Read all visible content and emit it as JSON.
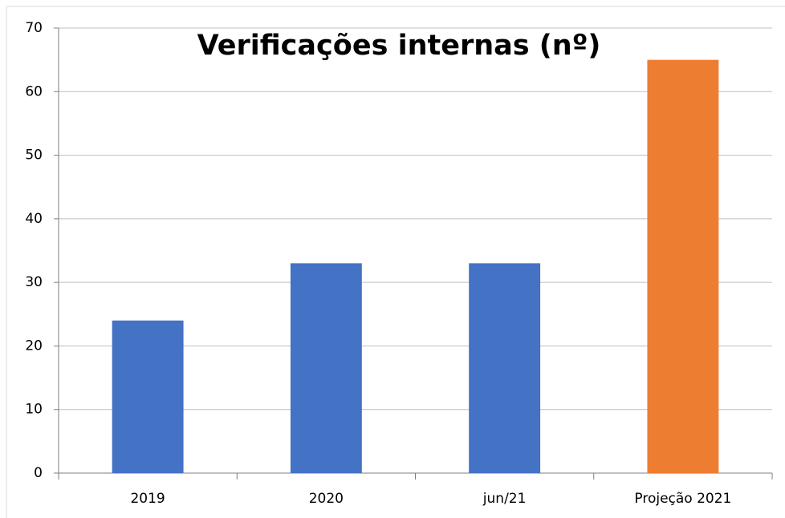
{
  "chart_data": {
    "type": "bar",
    "title": "Verificações internas (nº)",
    "categories": [
      "2019",
      "2020",
      "jun/21",
      "Projeção 2021"
    ],
    "values": [
      24,
      33,
      33,
      65
    ],
    "colors": [
      "#4472c4",
      "#4472c4",
      "#4472c4",
      "#ed7d31"
    ],
    "ylim": [
      0,
      70
    ],
    "yticks": [
      0,
      10,
      20,
      30,
      40,
      50,
      60,
      70
    ],
    "grid": true
  }
}
